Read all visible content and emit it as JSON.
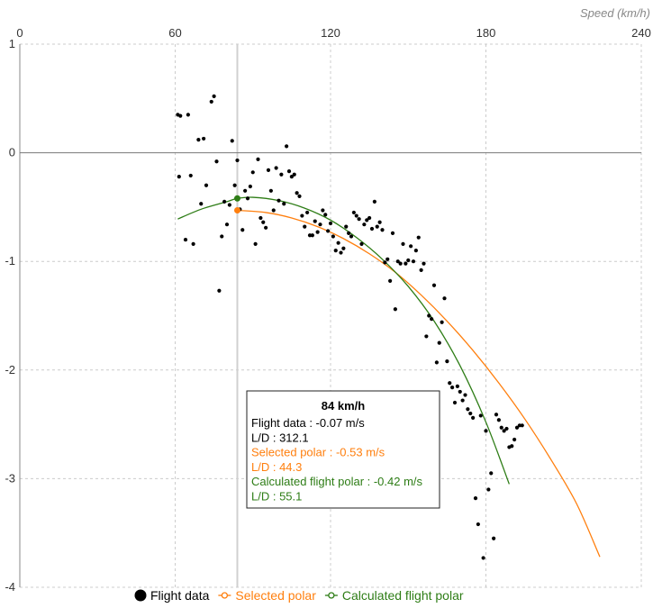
{
  "chart_data": {
    "type": "scatter",
    "x_axis": {
      "label": "Speed (km/h)",
      "range": [
        0,
        240
      ],
      "ticks": [
        0,
        60,
        120,
        180,
        240
      ],
      "position": "top"
    },
    "y_axis": {
      "range": [
        -4,
        1
      ],
      "ticks": [
        1,
        0,
        -1,
        -2,
        -3,
        -4
      ]
    },
    "grid": true,
    "legend_position": "bottom-center",
    "colors": {
      "flight": "#000000",
      "selected": "#ff7f0e",
      "calculated": "#2e7d16"
    },
    "series": [
      {
        "name": "Flight data",
        "type": "scatter",
        "points": [
          [
            61,
            0.35
          ],
          [
            62,
            0.34
          ],
          [
            65,
            0.35
          ],
          [
            61.5,
            -0.22
          ],
          [
            66,
            -0.21
          ],
          [
            64,
            -0.8
          ],
          [
            67,
            -0.84
          ],
          [
            69,
            0.12
          ],
          [
            71,
            0.13
          ],
          [
            72,
            -0.3
          ],
          [
            70,
            -0.47
          ],
          [
            74,
            0.47
          ],
          [
            75,
            0.52
          ],
          [
            76,
            -0.08
          ],
          [
            77,
            -1.27
          ],
          [
            78,
            -0.77
          ],
          [
            79,
            -0.45
          ],
          [
            80,
            -0.66
          ],
          [
            81,
            -0.48
          ],
          [
            82,
            0.11
          ],
          [
            83,
            -0.3
          ],
          [
            84,
            -0.07
          ],
          [
            85,
            -0.52
          ],
          [
            86,
            -0.71
          ],
          [
            87,
            -0.35
          ],
          [
            88,
            -0.42
          ],
          [
            89,
            -0.31
          ],
          [
            90,
            -0.18
          ],
          [
            91,
            -0.84
          ],
          [
            92,
            -0.06
          ],
          [
            93,
            -0.6
          ],
          [
            94,
            -0.64
          ],
          [
            95,
            -0.69
          ],
          [
            96,
            -0.16
          ],
          [
            97,
            -0.35
          ],
          [
            98,
            -0.53
          ],
          [
            99,
            -0.14
          ],
          [
            100,
            -0.44
          ],
          [
            101,
            -0.2
          ],
          [
            102,
            -0.47
          ],
          [
            103,
            0.06
          ],
          [
            104,
            -0.17
          ],
          [
            105,
            -0.22
          ],
          [
            106,
            -0.2
          ],
          [
            107,
            -0.37
          ],
          [
            108,
            -0.4
          ],
          [
            109,
            -0.58
          ],
          [
            110,
            -0.68
          ],
          [
            111,
            -0.55
          ],
          [
            112,
            -0.76
          ],
          [
            113,
            -0.76
          ],
          [
            114,
            -0.63
          ],
          [
            115,
            -0.73
          ],
          [
            116,
            -0.66
          ],
          [
            117,
            -0.53
          ],
          [
            118,
            -0.57
          ],
          [
            119,
            -0.72
          ],
          [
            120,
            -0.65
          ],
          [
            121,
            -0.77
          ],
          [
            122,
            -0.9
          ],
          [
            123,
            -0.83
          ],
          [
            124,
            -0.92
          ],
          [
            125,
            -0.88
          ],
          [
            126,
            -0.68
          ],
          [
            127,
            -0.74
          ],
          [
            128,
            -0.77
          ],
          [
            129,
            -0.55
          ],
          [
            130,
            -0.58
          ],
          [
            131,
            -0.61
          ],
          [
            132,
            -0.84
          ],
          [
            133,
            -0.66
          ],
          [
            134,
            -0.62
          ],
          [
            135,
            -0.6
          ],
          [
            136,
            -0.7
          ],
          [
            137,
            -0.45
          ],
          [
            138,
            -0.68
          ],
          [
            139,
            -0.64
          ],
          [
            140,
            -0.71
          ],
          [
            141,
            -1.01
          ],
          [
            142,
            -0.98
          ],
          [
            143,
            -1.18
          ],
          [
            144,
            -0.74
          ],
          [
            145,
            -1.44
          ],
          [
            146,
            -1.0
          ],
          [
            147,
            -1.02
          ],
          [
            148,
            -0.84
          ],
          [
            149,
            -1.02
          ],
          [
            150,
            -0.99
          ],
          [
            151,
            -0.86
          ],
          [
            152,
            -1.0
          ],
          [
            153,
            -0.9
          ],
          [
            154,
            -0.78
          ],
          [
            155,
            -1.08
          ],
          [
            156,
            -1.02
          ],
          [
            157,
            -1.69
          ],
          [
            158,
            -1.5
          ],
          [
            159,
            -1.53
          ],
          [
            160,
            -1.22
          ],
          [
            161,
            -1.93
          ],
          [
            162,
            -1.75
          ],
          [
            163,
            -1.56
          ],
          [
            164,
            -1.34
          ],
          [
            165,
            -1.92
          ],
          [
            166,
            -2.12
          ],
          [
            167,
            -2.16
          ],
          [
            168,
            -2.3
          ],
          [
            169,
            -2.15
          ],
          [
            170,
            -2.2
          ],
          [
            171,
            -2.28
          ],
          [
            172,
            -2.23
          ],
          [
            173,
            -2.36
          ],
          [
            174,
            -2.4
          ],
          [
            175,
            -2.44
          ],
          [
            176,
            -3.18
          ],
          [
            177,
            -3.42
          ],
          [
            178,
            -2.42
          ],
          [
            179,
            -3.73
          ],
          [
            180,
            -2.56
          ],
          [
            181,
            -3.1
          ],
          [
            182,
            -2.95
          ],
          [
            183,
            -3.55
          ],
          [
            184,
            -2.41
          ],
          [
            185,
            -2.46
          ],
          [
            186,
            -2.53
          ],
          [
            187,
            -2.56
          ],
          [
            188,
            -2.54
          ],
          [
            189,
            -2.71
          ],
          [
            190,
            -2.7
          ],
          [
            191,
            -2.64
          ],
          [
            192,
            -2.53
          ],
          [
            193,
            -2.51
          ],
          [
            194,
            -2.51
          ]
        ]
      },
      {
        "name": "Selected polar",
        "type": "line",
        "x": [
          84,
          95,
          105,
          115,
          125,
          135,
          145,
          155,
          165,
          175,
          185,
          195,
          205,
          215,
          224
        ],
        "y": [
          -0.53,
          -0.55,
          -0.6,
          -0.68,
          -0.79,
          -0.93,
          -1.1,
          -1.31,
          -1.55,
          -1.82,
          -2.12,
          -2.45,
          -2.82,
          -3.23,
          -3.72
        ]
      },
      {
        "name": "Calculated flight polar",
        "type": "line",
        "x": [
          61,
          70,
          80,
          84,
          90,
          100,
          110,
          120,
          130,
          140,
          150,
          160,
          170,
          180,
          189
        ],
        "y": [
          -0.61,
          -0.52,
          -0.45,
          -0.42,
          -0.41,
          -0.44,
          -0.51,
          -0.62,
          -0.78,
          -0.98,
          -1.23,
          -1.55,
          -1.96,
          -2.48,
          -3.05
        ]
      }
    ],
    "cursor": {
      "x": 84,
      "flight_y": -0.42,
      "selected_y": -0.53
    },
    "tooltip": {
      "title": "84 km/h",
      "lines": [
        {
          "text": "Flight data : -0.07 m/s",
          "series": "flight"
        },
        {
          "text": "L/D : 312.1",
          "series": "flight"
        },
        {
          "text": "Selected polar : -0.53 m/s",
          "series": "selected"
        },
        {
          "text": "L/D : 44.3",
          "series": "selected"
        },
        {
          "text": "Calculated flight polar : -0.42 m/s",
          "series": "calculated"
        },
        {
          "text": "L/D : 55.1",
          "series": "calculated"
        }
      ]
    }
  }
}
